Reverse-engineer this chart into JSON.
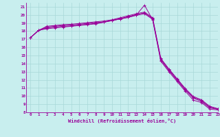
{
  "xlabel": "Windchill (Refroidissement éolien,°C)",
  "background_color": "#c8eeee",
  "grid_color": "#a8d8d8",
  "line_color": "#990099",
  "xlim": [
    -0.5,
    23
  ],
  "ylim": [
    8,
    21.5
  ],
  "yticks": [
    8,
    9,
    10,
    11,
    12,
    13,
    14,
    15,
    16,
    17,
    18,
    19,
    20,
    21
  ],
  "xticks": [
    0,
    1,
    2,
    3,
    4,
    5,
    6,
    7,
    8,
    9,
    10,
    11,
    12,
    13,
    14,
    15,
    16,
    17,
    18,
    19,
    20,
    21,
    22,
    23
  ],
  "lines": [
    [
      17.2,
      18.1,
      18.3,
      18.4,
      18.5,
      18.6,
      18.7,
      18.8,
      18.9,
      19.1,
      19.3,
      19.5,
      19.7,
      20.0,
      21.2,
      19.4,
      14.3,
      13.0,
      11.8,
      10.6,
      9.5,
      9.2,
      8.4,
      8.3
    ],
    [
      17.2,
      18.1,
      18.4,
      18.5,
      18.6,
      18.65,
      18.75,
      18.85,
      18.95,
      19.1,
      19.3,
      19.5,
      19.7,
      19.95,
      20.15,
      19.45,
      14.45,
      13.15,
      11.95,
      10.75,
      9.75,
      9.35,
      8.55,
      8.38
    ],
    [
      17.2,
      18.1,
      18.5,
      18.6,
      18.7,
      18.75,
      18.85,
      18.95,
      19.05,
      19.15,
      19.35,
      19.55,
      19.8,
      20.05,
      20.25,
      19.55,
      14.55,
      13.25,
      12.05,
      10.85,
      9.85,
      9.45,
      8.65,
      8.42
    ],
    [
      17.2,
      18.1,
      18.6,
      18.7,
      18.8,
      18.85,
      18.95,
      19.05,
      19.15,
      19.25,
      19.4,
      19.65,
      19.9,
      20.15,
      20.35,
      19.65,
      14.65,
      13.35,
      12.15,
      10.95,
      9.95,
      9.55,
      8.75,
      8.46
    ]
  ]
}
